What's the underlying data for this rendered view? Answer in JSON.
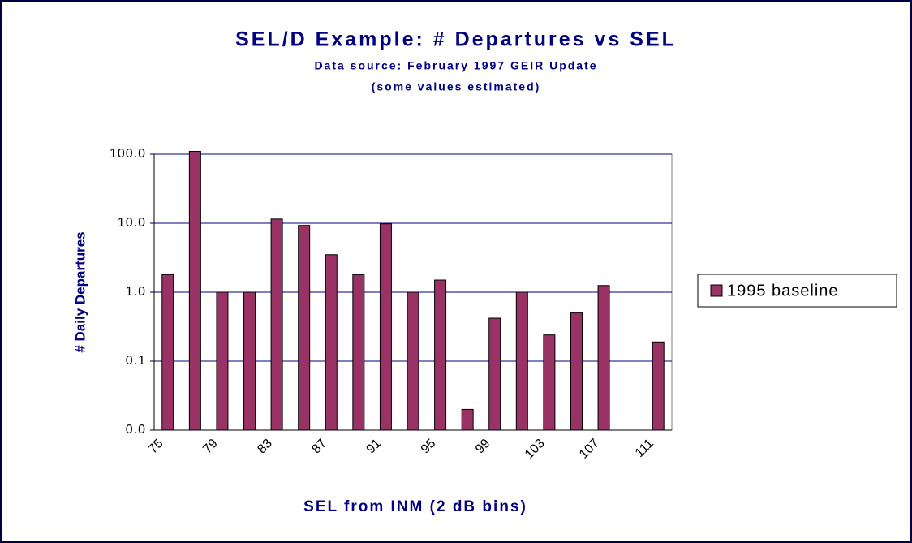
{
  "chart_data": {
    "type": "bar",
    "title": "SEL/D Example:  # Departures vs SEL",
    "subtitle": "Data source:  February 1997 GEIR Update",
    "note": "(some values estimated)",
    "x_label": "SEL from INM (2 dB bins)",
    "y_label": "# Daily Departures",
    "categories": [
      "75",
      null,
      "79",
      null,
      "83",
      null,
      "87",
      null,
      "91",
      null,
      "95",
      null,
      "99",
      null,
      "103",
      null,
      "107",
      null,
      "111"
    ],
    "series": [
      {
        "name": "1995 baseline",
        "color": "#993366",
        "values": [
          1.8,
          110,
          1,
          1,
          11.5,
          9.3,
          3.5,
          1.8,
          9.8,
          1,
          1.5,
          0.02,
          0.42,
          1,
          0.24,
          0.5,
          1.25,
          null,
          0.19
        ]
      }
    ],
    "ylim": [
      0.01,
      100
    ],
    "yticks": [
      {
        "value": 0.01,
        "label": "0.0"
      },
      {
        "value": 0.1,
        "label": "0.1"
      },
      {
        "value": 1,
        "label": "1.0"
      },
      {
        "value": 10,
        "label": "10.0"
      },
      {
        "value": 100,
        "label": "100.0"
      }
    ],
    "log_y": true,
    "grid": true,
    "legend": "right"
  }
}
